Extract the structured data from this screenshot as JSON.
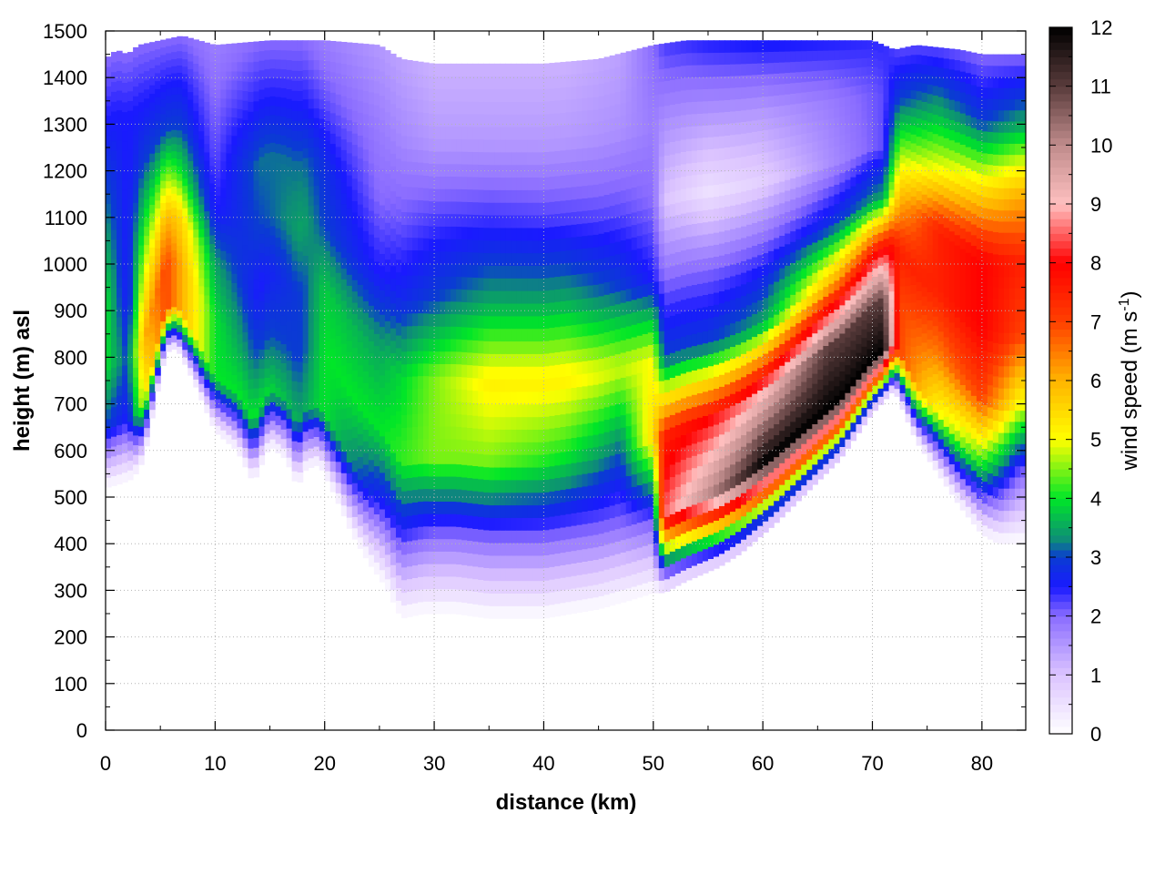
{
  "chart_data": {
    "type": "heatmap",
    "xlabel": "distance (km)",
    "ylabel": "height (m) asl",
    "colorbar_label_main": "wind speed (m s",
    "colorbar_label_sup": "-1",
    "colorbar_label_close": ")",
    "xlim": [
      0,
      84
    ],
    "ylim": [
      0,
      1500
    ],
    "zlim": [
      0,
      12
    ],
    "x_ticks": [
      "0",
      "10",
      "20",
      "30",
      "40",
      "50",
      "60",
      "70",
      "80"
    ],
    "y_ticks": [
      "0",
      "100",
      "200",
      "300",
      "400",
      "500",
      "600",
      "700",
      "800",
      "900",
      "1000",
      "1100",
      "1200",
      "1300",
      "1400",
      "1500"
    ],
    "z_ticks": [
      "0",
      "1",
      "2",
      "3",
      "4",
      "5",
      "6",
      "7",
      "8",
      "9",
      "10",
      "11",
      "12"
    ],
    "grid": true,
    "colormap": [
      {
        "v": 0,
        "c": "#ffffff"
      },
      {
        "v": 1,
        "c": "#dcc4ff"
      },
      {
        "v": 2,
        "c": "#8a6cff"
      },
      {
        "v": 2.5,
        "c": "#1a1aff"
      },
      {
        "v": 3,
        "c": "#0a3cd2"
      },
      {
        "v": 3.3,
        "c": "#0e8c78"
      },
      {
        "v": 4,
        "c": "#00e628"
      },
      {
        "v": 5,
        "c": "#ffff00"
      },
      {
        "v": 6,
        "c": "#ffb400"
      },
      {
        "v": 7,
        "c": "#ff4000"
      },
      {
        "v": 8,
        "c": "#ff0000"
      },
      {
        "v": 9,
        "c": "#ffc0c0"
      },
      {
        "v": 10,
        "c": "#c08c8c"
      },
      {
        "v": 11,
        "c": "#5a3c3c"
      },
      {
        "v": 12,
        "c": "#000000"
      }
    ],
    "terrain": {
      "x": [
        0,
        1.5,
        2.5,
        3.5,
        4.5,
        5.5,
        6.5,
        8,
        10,
        12,
        13.5,
        15,
        16.5,
        17.5,
        18.3,
        19.5,
        21,
        22.5,
        24,
        25.5,
        27,
        29,
        32,
        35,
        40,
        45,
        48,
        50,
        51,
        53,
        56,
        58,
        61,
        64,
        67,
        70,
        72,
        74,
        76,
        78,
        80,
        81.5,
        83.5
      ],
      "y": [
        520,
        530,
        540,
        580,
        700,
        810,
        820,
        750,
        640,
        600,
        530,
        610,
        580,
        520,
        560,
        570,
        500,
        420,
        360,
        310,
        240,
        250,
        250,
        240,
        240,
        260,
        280,
        295,
        295,
        320,
        350,
        380,
        440,
        510,
        580,
        680,
        730,
        620,
        550,
        480,
        420,
        400,
        400
      ]
    },
    "top": {
      "x": [
        0,
        1,
        2,
        3,
        5,
        7,
        10,
        15,
        20,
        25,
        27,
        30,
        35,
        40,
        45,
        50,
        53,
        55,
        60,
        65,
        70,
        72,
        74,
        78,
        80,
        83.5
      ],
      "y": [
        1440,
        1460,
        1450,
        1470,
        1480,
        1490,
        1470,
        1480,
        1480,
        1470,
        1440,
        1430,
        1430,
        1430,
        1440,
        1470,
        1480,
        1480,
        1480,
        1480,
        1480,
        1460,
        1470,
        1460,
        1450,
        1450
      ]
    },
    "field_nodes": [
      {
        "x": 0,
        "h": [
          0,
          3,
          4,
          4,
          3.5,
          3,
          2.5,
          2
        ]
      },
      {
        "x": 2,
        "h": [
          0,
          2.5,
          3,
          2.5,
          2.5,
          2.5,
          2.5,
          2
        ]
      },
      {
        "x": 3.5,
        "h": [
          0,
          5,
          6,
          5,
          4,
          3,
          2.5,
          2
        ]
      },
      {
        "x": 5.5,
        "h": [
          0,
          7,
          7,
          6,
          4.5,
          3,
          2.5,
          2
        ]
      },
      {
        "x": 7,
        "h": [
          0,
          6,
          6,
          5.5,
          4,
          3,
          2.5,
          2
        ]
      },
      {
        "x": 10,
        "h": [
          0,
          4,
          4,
          3.5,
          2.5,
          2.2,
          2,
          1.8
        ]
      },
      {
        "x": 14,
        "h": [
          0,
          4,
          3,
          2.5,
          3,
          3.2,
          2.5,
          2
        ]
      },
      {
        "x": 18,
        "h": [
          0,
          3.5,
          3,
          3,
          3.5,
          3.2,
          2.5,
          2
        ]
      },
      {
        "x": 20,
        "h": [
          0,
          4,
          4,
          3.8,
          3,
          2.8,
          2.2,
          1.8
        ]
      },
      {
        "x": 25,
        "h": [
          0,
          2.5,
          4,
          3.5,
          2.5,
          2,
          1.8,
          1.5
        ]
      },
      {
        "x": 30,
        "h": [
          0,
          2,
          4.5,
          4.5,
          3,
          2.3,
          1.5,
          1.2
        ]
      },
      {
        "x": 35,
        "h": [
          0,
          2,
          4.5,
          5.2,
          3.5,
          2.4,
          1.5,
          1.2
        ]
      },
      {
        "x": 42,
        "h": [
          0,
          2,
          4,
          5.2,
          3.5,
          2.3,
          1.5,
          1.2
        ]
      },
      {
        "x": 47,
        "h": [
          0,
          2,
          3.2,
          4.8,
          3,
          2.2,
          1.6,
          1.4
        ]
      },
      {
        "x": 50,
        "h": [
          0,
          2.3,
          5.5,
          5,
          2.5,
          2,
          1.8,
          2
        ]
      },
      {
        "x": 51,
        "h": [
          0,
          8.5,
          7.5,
          3,
          2,
          1,
          1.6,
          2.3
        ]
      },
      {
        "x": 55,
        "h": [
          0,
          10,
          8,
          3,
          2,
          0.5,
          1.5,
          2.5
        ]
      },
      {
        "x": 60,
        "h": [
          0,
          12,
          9,
          3.5,
          2.2,
          0.8,
          1.5,
          2.6
        ]
      },
      {
        "x": 66,
        "h": [
          0,
          12,
          11,
          6,
          2.8,
          1.6,
          1.8,
          2.5
        ]
      },
      {
        "x": 71,
        "h": [
          0,
          12,
          11,
          8,
          3.5,
          2.2,
          2.2,
          2.4
        ]
      },
      {
        "x": 72.5,
        "h": [
          0,
          7,
          7,
          7.5,
          6,
          4.5,
          3,
          2.2
        ]
      },
      {
        "x": 76,
        "h": [
          0,
          5,
          6.5,
          7.5,
          7.5,
          5,
          3.5,
          2.2
        ]
      },
      {
        "x": 80,
        "h": [
          0,
          4,
          7,
          8,
          8,
          5.5,
          3,
          2
        ]
      },
      {
        "x": 83.5,
        "h": [
          0,
          2,
          5,
          7,
          7.5,
          6,
          3.5,
          2
        ]
      }
    ]
  }
}
